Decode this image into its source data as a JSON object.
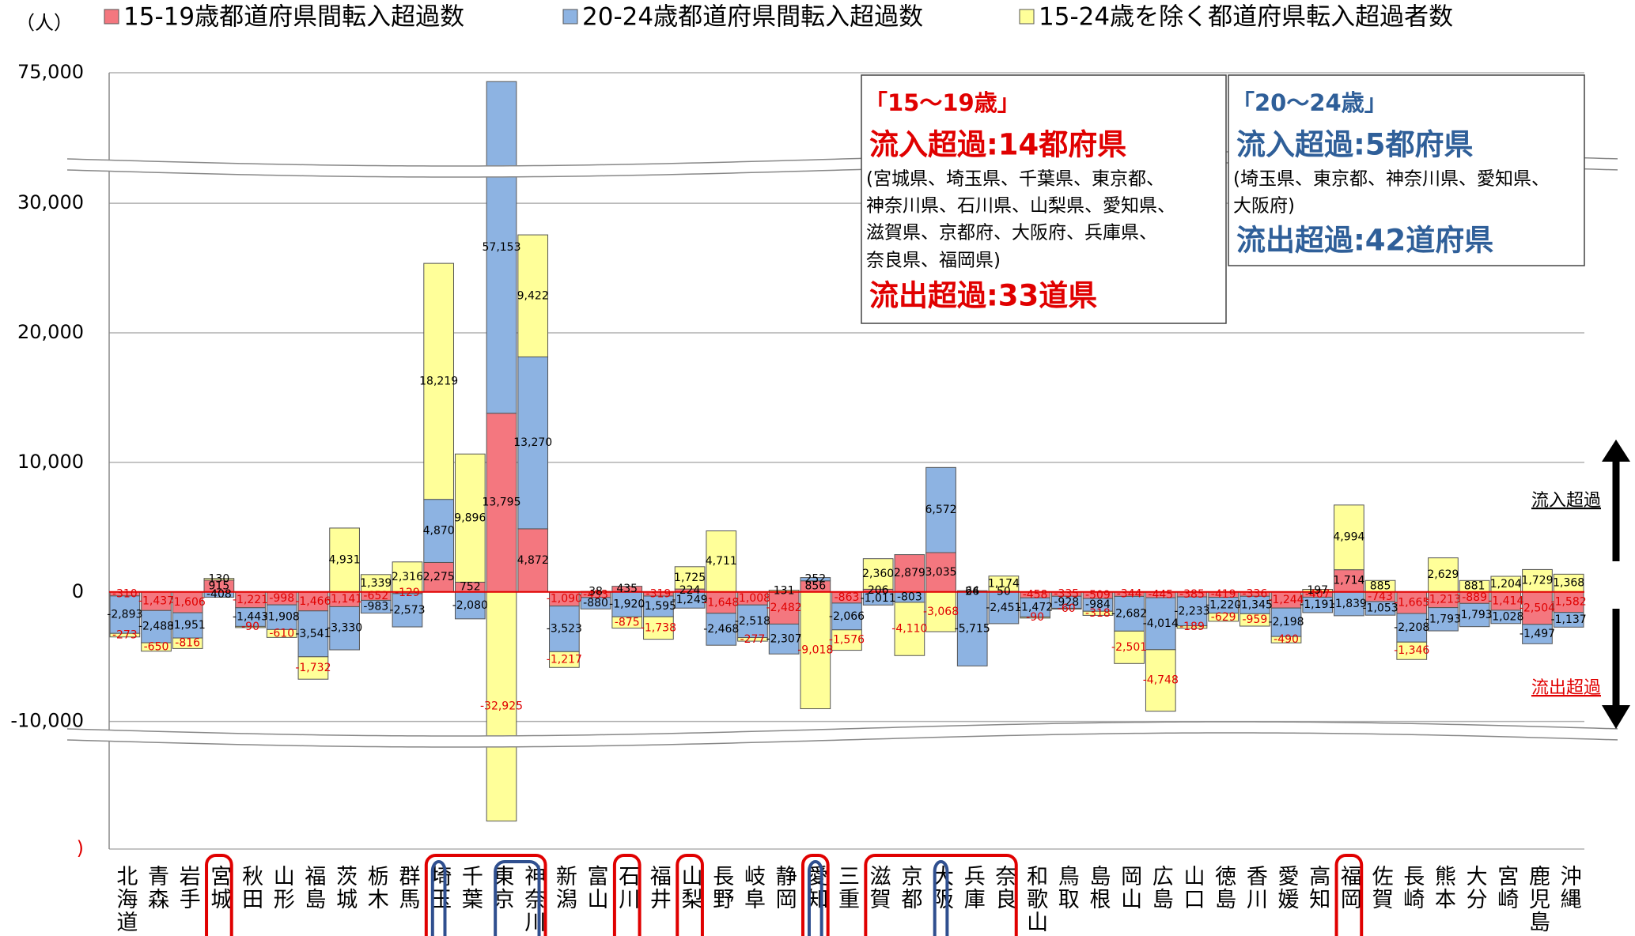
{
  "unit": "（人）",
  "side_labels": {
    "inflow": "流入超過",
    "outflow": "流出超過"
  },
  "annotations": [
    {
      "color": "#e00000",
      "label": "「15～19歳」",
      "inflow": "流入超過:14都府県",
      "list": [
        "(宮城県、埼玉県、千葉県、東京都、",
        "神奈川県、石川県、山梨県、愛知県、",
        "滋賀県、京都府、大阪府、兵庫県、",
        "奈良県、福岡県)"
      ],
      "outflow": "流出超過:33道県"
    },
    {
      "color": "#2f5f99",
      "label": "「20～24歳」",
      "inflow": "流入超過:5都府県",
      "list": [
        "(埼玉県、東京都、神奈川県、愛知県、",
        "大阪府)"
      ],
      "outflow": "流出超過:42道府県"
    }
  ],
  "chart_data": {
    "type": "stacked_bar",
    "categories": [
      "北海道",
      "青森",
      "岩手",
      "宮城",
      "秋田",
      "山形",
      "福島",
      "茨城",
      "栃木",
      "群馬",
      "埼玉",
      "千葉",
      "東京",
      "神奈川",
      "新潟",
      "富山",
      "石川",
      "福井",
      "山梨",
      "長野",
      "岐阜",
      "静岡",
      "愛知",
      "三重",
      "滋賀",
      "京都",
      "大阪",
      "兵庫",
      "奈良",
      "和歌山",
      "鳥取",
      "島根",
      "岡山",
      "広島",
      "山口",
      "徳島",
      "香川",
      "愛媛",
      "高知",
      "福岡",
      "佐賀",
      "長崎",
      "熊本",
      "大分",
      "宮崎",
      "鹿児島",
      "沖縄"
    ],
    "series": [
      {
        "name": "15-19歳都道府県間転入超過数",
        "color": "#f4777f",
        "negative_label_color": "#e00000",
        "values": [
          -310,
          -1437,
          -1606,
          915,
          -1221,
          -998,
          -1466,
          -1141,
          -652,
          -129,
          2275,
          752,
          13795,
          4872,
          -1090,
          -433,
          435,
          -319,
          224,
          -1648,
          -1008,
          -2482,
          856,
          -863,
          206,
          2879,
          3035,
          26,
          50,
          -458,
          -335,
          -509,
          -344,
          -445,
          -385,
          -419,
          -336,
          -1244,
          -407,
          1714,
          -743,
          -1665,
          -1213,
          -889,
          -1414,
          -2504,
          -1582
        ],
        "value_labels": [
          "-310",
          "-1,437",
          "-1,606",
          "915",
          "-1,221",
          "-998",
          "-1,466",
          "-1,141",
          "-652",
          "-129",
          "2,275",
          "752",
          "13,795",
          "4,872",
          "-1,090",
          "-433",
          "435",
          "-319",
          "224",
          "-1,648",
          "-1,008",
          "-2,482",
          "856",
          "-863",
          "206",
          "2,879",
          "3,035",
          "26",
          "50",
          "-458",
          "-335",
          "-509",
          "-344",
          "-445",
          "-385",
          "-419",
          "-336",
          "-1,244",
          "-407",
          "1,714",
          "-743",
          "-1,665",
          "-1,213",
          "-889",
          "-1,414",
          "-2,504",
          "-1,582"
        ]
      },
      {
        "name": "20-24歳都道府県間転入超過数",
        "color": "#8db3e2",
        "values": [
          -2893,
          -2488,
          -1951,
          -408,
          -1443,
          -1908,
          -3541,
          -3330,
          -983,
          -2573,
          4870,
          -2080,
          57153,
          13270,
          -3523,
          -880,
          -1920,
          -1595,
          -1249,
          -2468,
          -2518,
          -2307,
          252,
          -2066,
          -1011,
          -803,
          6572,
          -5715,
          -2451,
          -1472,
          -928,
          -984,
          -2682,
          -4014,
          -2233,
          -1220,
          -1345,
          -2198,
          -1191,
          -1839,
          -1053,
          -2208,
          -1793,
          -1793,
          -1028,
          -1497,
          -1137
        ],
        "value_labels": [
          "-2,893",
          "-2,488",
          "-1,951",
          "-408",
          "-1,443",
          "-1,908",
          "-3,541",
          "-3,330",
          "-983",
          "-2,573",
          "4,870",
          "-2,080",
          "57,153",
          "13,270",
          "-3,523",
          "-880",
          "-1,920",
          "-1,595",
          "-1,249",
          "-2,468",
          "-2,518",
          "-2,307",
          "252",
          "-2,066",
          "-1,011",
          "-803",
          "6,572",
          "-5,715",
          "-2,451",
          "-1,472",
          "-928",
          "-984",
          "-2,682",
          "-4,014",
          "-2,233",
          "-1,220",
          "-1,345",
          "-2,198",
          "-1,191",
          "-1,839",
          "-1,053",
          "-2,208",
          "-1,793",
          "-1,793",
          "-1,028",
          "-1,497",
          "-1,137"
        ]
      },
      {
        "name": "15-24歳を除く都道府県転入超過者数",
        "color": "#ffff99",
        "negative_label_color": "#e00000",
        "values": [
          -273,
          -650,
          -816,
          130,
          -90,
          -610,
          -1732,
          4931,
          1339,
          2316,
          18219,
          9896,
          -32925,
          9422,
          -1217,
          38,
          -875,
          -1738,
          1725,
          4711,
          -277,
          131,
          -9018,
          -1576,
          2360,
          -4110,
          -3068,
          64,
          1174,
          -90,
          -60,
          -318,
          -2501,
          -4748,
          -189,
          -629,
          -959,
          -490,
          197,
          4994,
          885,
          -1346,
          2629,
          881,
          1204,
          1729,
          1368
        ],
        "value_labels": [
          "-273",
          "-650",
          "-816",
          "130",
          "-90",
          "-610",
          "-1,732",
          "4,931",
          "1,339",
          "2,316",
          "18,219",
          "9,896",
          "-32,925",
          "9,422",
          "-1,217",
          "38",
          "-875",
          "-1,738",
          "1,725",
          "4,711",
          "-277",
          "131",
          "-9,018",
          "-1,576",
          "2,360",
          "-4,110",
          "-3,068",
          "64",
          "1,174",
          "-90",
          "-60",
          "-318",
          "-2,501",
          "-4,748",
          "-189",
          "-629",
          "-959",
          "-490",
          "197",
          "4,994",
          "885",
          "-1,346",
          "2,629",
          "881",
          "1,204",
          "1,729",
          "1,368"
        ]
      }
    ],
    "ylim": [
      -40000,
      75000
    ],
    "ybreaks": [
      -11000,
      33000
    ],
    "yticks": [
      {
        "value": -40000,
        "label": ")"
      },
      {
        "value": -10000,
        "label": "-10,000"
      },
      0,
      {
        "value": 10000,
        "label": "10,000"
      },
      {
        "value": 20000,
        "label": "20,000"
      },
      {
        "value": 30000,
        "label": "30,000"
      },
      {
        "value": 75000,
        "label": "75,000"
      }
    ],
    "grid": true,
    "zero_line_color": "#e00000"
  }
}
